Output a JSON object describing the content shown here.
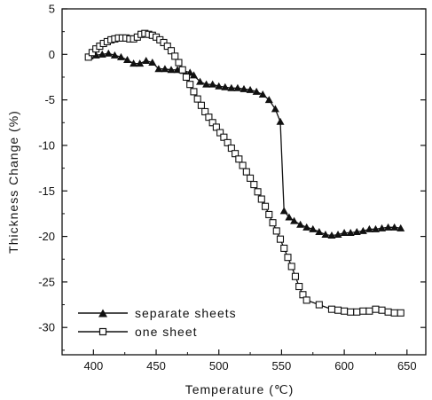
{
  "chart_data": {
    "type": "line",
    "xlabel": "Temperature (℃)",
    "ylabel": "Thickness Change (%)",
    "xlim": [
      375,
      665
    ],
    "ylim": [
      -33,
      5
    ],
    "xticks": [
      400,
      450,
      500,
      550,
      600,
      650
    ],
    "yticks": [
      5,
      0,
      -5,
      -10,
      -15,
      -20,
      -25,
      -30
    ],
    "grid": false,
    "legend_position": "bottom-left",
    "series": [
      {
        "name": "separate sheets",
        "marker": "filled-triangle",
        "color": "#111111",
        "points": [
          [
            397,
            -0.2
          ],
          [
            402,
            -0.1
          ],
          [
            407,
            0.0
          ],
          [
            412,
            0.1
          ],
          [
            417,
            -0.1
          ],
          [
            422,
            -0.3
          ],
          [
            427,
            -0.6
          ],
          [
            432,
            -1.0
          ],
          [
            437,
            -1.0
          ],
          [
            442,
            -0.7
          ],
          [
            447,
            -0.9
          ],
          [
            452,
            -1.6
          ],
          [
            457,
            -1.6
          ],
          [
            462,
            -1.7
          ],
          [
            467,
            -1.7
          ],
          [
            472,
            -1.8
          ],
          [
            477,
            -2.0
          ],
          [
            480,
            -2.3
          ],
          [
            485,
            -3.0
          ],
          [
            490,
            -3.3
          ],
          [
            495,
            -3.3
          ],
          [
            500,
            -3.5
          ],
          [
            505,
            -3.6
          ],
          [
            510,
            -3.7
          ],
          [
            515,
            -3.7
          ],
          [
            520,
            -3.8
          ],
          [
            525,
            -3.9
          ],
          [
            530,
            -4.1
          ],
          [
            535,
            -4.4
          ],
          [
            540,
            -5.0
          ],
          [
            545,
            -6.0
          ],
          [
            549,
            -7.4
          ],
          [
            552,
            -17.2
          ],
          [
            556,
            -17.9
          ],
          [
            560,
            -18.3
          ],
          [
            565,
            -18.7
          ],
          [
            570,
            -19.0
          ],
          [
            575,
            -19.2
          ],
          [
            580,
            -19.5
          ],
          [
            585,
            -19.8
          ],
          [
            590,
            -19.9
          ],
          [
            595,
            -19.8
          ],
          [
            600,
            -19.6
          ],
          [
            605,
            -19.6
          ],
          [
            610,
            -19.5
          ],
          [
            615,
            -19.4
          ],
          [
            620,
            -19.2
          ],
          [
            625,
            -19.2
          ],
          [
            630,
            -19.1
          ],
          [
            635,
            -19.0
          ],
          [
            640,
            -19.0
          ],
          [
            645,
            -19.1
          ]
        ]
      },
      {
        "name": "one sheet",
        "marker": "open-square",
        "color": "#111111",
        "points": [
          [
            396,
            -0.3
          ],
          [
            399,
            0.2
          ],
          [
            402,
            0.6
          ],
          [
            405,
            0.9
          ],
          [
            408,
            1.2
          ],
          [
            411,
            1.4
          ],
          [
            414,
            1.6
          ],
          [
            417,
            1.7
          ],
          [
            420,
            1.8
          ],
          [
            423,
            1.8
          ],
          [
            426,
            1.8
          ],
          [
            429,
            1.7
          ],
          [
            432,
            1.7
          ],
          [
            435,
            1.9
          ],
          [
            438,
            2.2
          ],
          [
            441,
            2.3
          ],
          [
            444,
            2.2
          ],
          [
            447,
            2.1
          ],
          [
            450,
            1.9
          ],
          [
            453,
            1.6
          ],
          [
            456,
            1.3
          ],
          [
            459,
            0.9
          ],
          [
            462,
            0.4
          ],
          [
            465,
            -0.2
          ],
          [
            468,
            -0.9
          ],
          [
            471,
            -1.7
          ],
          [
            474,
            -2.5
          ],
          [
            477,
            -3.3
          ],
          [
            480,
            -4.1
          ],
          [
            483,
            -4.9
          ],
          [
            486,
            -5.6
          ],
          [
            489,
            -6.3
          ],
          [
            492,
            -6.9
          ],
          [
            495,
            -7.5
          ],
          [
            498,
            -8.0
          ],
          [
            501,
            -8.6
          ],
          [
            504,
            -9.1
          ],
          [
            507,
            -9.7
          ],
          [
            510,
            -10.3
          ],
          [
            513,
            -10.9
          ],
          [
            516,
            -11.5
          ],
          [
            519,
            -12.2
          ],
          [
            522,
            -12.9
          ],
          [
            525,
            -13.6
          ],
          [
            528,
            -14.3
          ],
          [
            531,
            -15.1
          ],
          [
            534,
            -15.9
          ],
          [
            537,
            -16.7
          ],
          [
            540,
            -17.6
          ],
          [
            543,
            -18.5
          ],
          [
            546,
            -19.4
          ],
          [
            549,
            -20.3
          ],
          [
            552,
            -21.3
          ],
          [
            555,
            -22.3
          ],
          [
            558,
            -23.3
          ],
          [
            561,
            -24.4
          ],
          [
            564,
            -25.5
          ],
          [
            567,
            -26.4
          ],
          [
            570,
            -27.0
          ],
          [
            580,
            -27.5
          ],
          [
            590,
            -28.0
          ],
          [
            595,
            -28.1
          ],
          [
            600,
            -28.2
          ],
          [
            605,
            -28.3
          ],
          [
            610,
            -28.3
          ],
          [
            615,
            -28.2
          ],
          [
            620,
            -28.2
          ],
          [
            625,
            -28.0
          ],
          [
            630,
            -28.1
          ],
          [
            635,
            -28.3
          ],
          [
            640,
            -28.4
          ],
          [
            645,
            -28.4
          ]
        ]
      }
    ]
  }
}
